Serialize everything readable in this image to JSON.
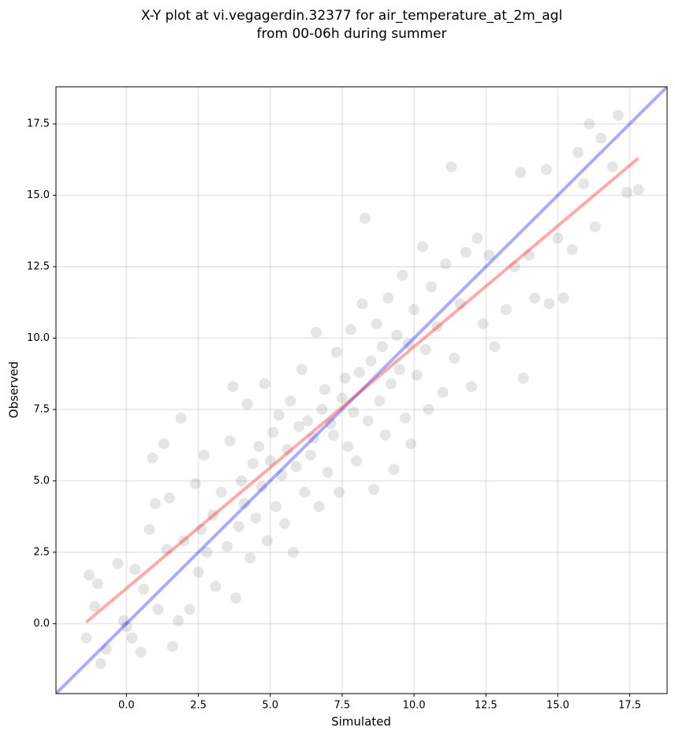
{
  "chart_data": {
    "type": "scatter",
    "title": [
      "X-Y plot at vi.vegagerdin.32377 for air_temperature_at_2m_agl",
      "from 00-06h during summer"
    ],
    "xlabel": "Simulated",
    "ylabel": "Observed",
    "xlim": [
      -2.45,
      18.8
    ],
    "ylim": [
      -2.45,
      18.8
    ],
    "xticks": [
      {
        "value": 0,
        "label": "0.0"
      },
      2.5,
      {
        "value": 5,
        "label": "5.0"
      },
      7.5,
      {
        "value": 10,
        "label": "10.0"
      },
      12.5,
      {
        "value": 15,
        "label": "15.0"
      },
      17.5
    ],
    "yticks": [
      {
        "value": 0,
        "label": "0.0"
      },
      2.5,
      {
        "value": 5,
        "label": "5.0"
      },
      7.5,
      {
        "value": 10,
        "label": "10.0"
      },
      12.5,
      {
        "value": 15,
        "label": "15.0"
      },
      17.5
    ],
    "grid": true,
    "series": [
      {
        "color": "#000000",
        "opacity": 0.1,
        "x": [
          -1.4,
          -1.3,
          -1.1,
          -1.0,
          -0.9,
          -0.7,
          -0.3,
          -0.1,
          0.0,
          0.2,
          0.3,
          0.5,
          0.6,
          0.8,
          0.9,
          1.0,
          1.1,
          1.3,
          1.4,
          1.5,
          1.6,
          1.8,
          1.9,
          2.0,
          2.2,
          2.4,
          2.5,
          2.6,
          2.7,
          2.8,
          3.0,
          3.1,
          3.3,
          3.5,
          3.6,
          3.7,
          3.8,
          3.9,
          4.0,
          4.1,
          4.2,
          4.3,
          4.4,
          4.5,
          4.6,
          4.7,
          4.8,
          4.9,
          5.0,
          5.1,
          5.2,
          5.3,
          5.4,
          5.5,
          5.6,
          5.7,
          5.8,
          5.9,
          6.0,
          6.1,
          6.2,
          6.3,
          6.4,
          6.5,
          6.6,
          6.7,
          6.8,
          6.9,
          7.0,
          7.1,
          7.2,
          7.3,
          7.4,
          7.5,
          7.6,
          7.7,
          7.8,
          7.9,
          8.0,
          8.1,
          8.2,
          8.3,
          8.4,
          8.5,
          8.6,
          8.7,
          8.8,
          8.9,
          9.0,
          9.1,
          9.2,
          9.3,
          9.4,
          9.5,
          9.6,
          9.7,
          9.8,
          9.9,
          10.0,
          10.1,
          10.3,
          10.4,
          10.5,
          10.6,
          10.8,
          11.0,
          11.1,
          11.3,
          11.4,
          11.6,
          11.8,
          12.0,
          12.2,
          12.4,
          12.6,
          12.8,
          13.2,
          13.5,
          13.7,
          13.8,
          14.0,
          14.2,
          14.6,
          14.7,
          15.0,
          15.2,
          15.5,
          15.7,
          15.9,
          16.1,
          16.3,
          16.5,
          16.9,
          17.1,
          17.4,
          17.8
        ],
        "values": [
          -0.5,
          1.7,
          0.6,
          1.4,
          -1.4,
          -0.9,
          2.1,
          0.1,
          -0.1,
          -0.5,
          1.9,
          -1.0,
          1.2,
          3.3,
          5.8,
          4.2,
          0.5,
          6.3,
          2.6,
          4.4,
          -0.8,
          0.1,
          7.2,
          2.9,
          0.5,
          4.9,
          1.8,
          3.3,
          5.9,
          2.5,
          3.8,
          1.3,
          4.6,
          2.7,
          6.4,
          8.3,
          0.9,
          3.4,
          5.0,
          4.2,
          7.7,
          2.3,
          5.6,
          3.7,
          6.2,
          4.8,
          8.4,
          2.9,
          5.7,
          6.7,
          4.1,
          7.3,
          5.2,
          3.5,
          6.1,
          7.8,
          2.5,
          5.5,
          6.9,
          8.9,
          4.6,
          7.1,
          5.9,
          6.5,
          10.2,
          4.1,
          7.5,
          8.2,
          5.3,
          7.0,
          6.6,
          9.5,
          4.6,
          7.9,
          8.6,
          6.2,
          10.3,
          7.4,
          5.7,
          8.8,
          11.2,
          14.2,
          7.1,
          9.2,
          4.7,
          10.5,
          7.8,
          9.7,
          6.6,
          11.4,
          8.4,
          5.4,
          10.1,
          8.9,
          12.2,
          7.2,
          9.8,
          6.3,
          11.0,
          8.7,
          13.2,
          9.6,
          7.5,
          11.8,
          10.4,
          8.1,
          12.6,
          16.0,
          9.3,
          11.2,
          13.0,
          8.3,
          13.5,
          10.5,
          12.9,
          9.7,
          11.0,
          12.5,
          15.8,
          8.6,
          12.9,
          11.4,
          15.9,
          11.2,
          13.5,
          11.4,
          13.1,
          16.5,
          15.4,
          17.5,
          13.9,
          17.0,
          16.0,
          17.8,
          15.1,
          15.2
        ]
      }
    ],
    "lines": [
      {
        "color": "#0000ff",
        "x": [
          -2.45,
          18.8
        ],
        "values": [
          -2.45,
          18.8
        ]
      },
      {
        "color": "#ff0000",
        "x": [
          -1.4,
          17.8
        ],
        "values": [
          0.05,
          16.3
        ]
      }
    ]
  }
}
